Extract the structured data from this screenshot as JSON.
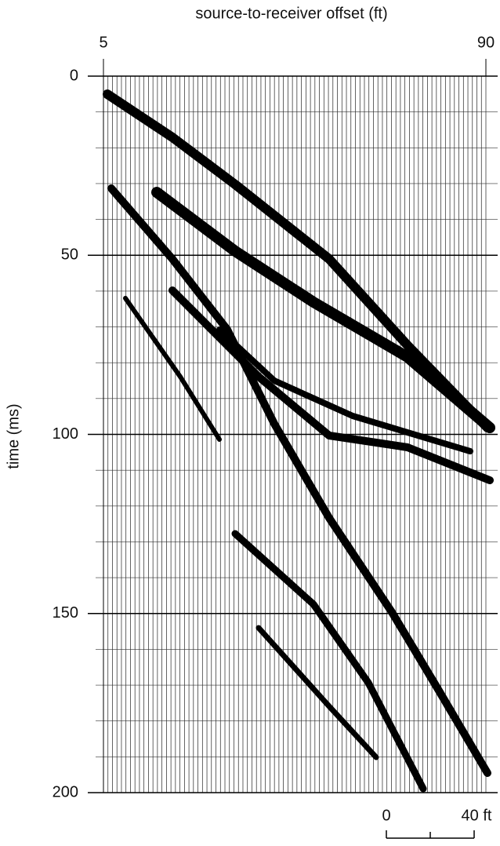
{
  "chart_data": {
    "type": "seismic",
    "x_label": "source-to-receiver offset (ft)",
    "y_label": "time (ms)",
    "xlim": [
      5,
      90
    ],
    "xticks": [
      5,
      90
    ],
    "ylim": [
      0,
      200
    ],
    "yticks": [
      0,
      50,
      100,
      150,
      200
    ],
    "scale_bar": [
      "0",
      "40 ft"
    ]
  }
}
